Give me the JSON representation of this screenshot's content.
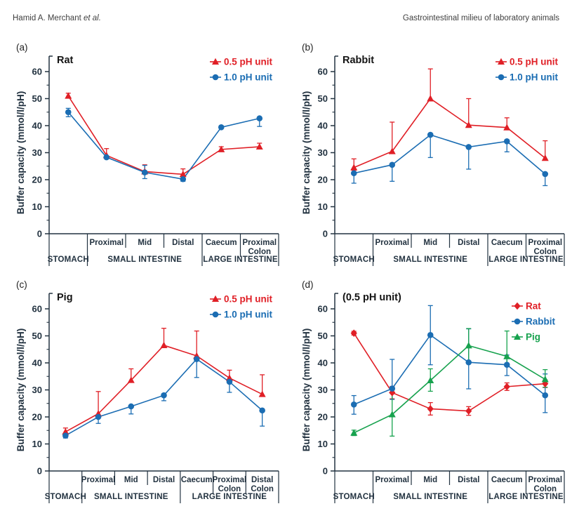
{
  "header": {
    "left_name": "Hamid A. Merchant ",
    "left_etal": "et al.",
    "right": "Gastrointestinal milieu of laboratory animals"
  },
  "colors": {
    "red": "#e01f26",
    "blue": "#1b6db3",
    "green": "#17a24e",
    "ink": "#223240"
  },
  "chart_data": [
    {
      "type": "line",
      "panel": "(a)",
      "title": "Rat",
      "ylabel": "Buffer capacity (mmol/l/pH)",
      "ylim": [
        0,
        66
      ],
      "yticks": [
        0,
        10,
        20,
        30,
        40,
        50,
        60
      ],
      "ytick_minor_step": 5,
      "grid": false,
      "legend_position": "top-right",
      "legend_pos": {
        "x": 287,
        "y": 36
      },
      "categories": [
        [],
        [
          "Proximal"
        ],
        [
          "Mid"
        ],
        [
          "Distal"
        ],
        [
          "Caecum"
        ],
        [
          "Proximal",
          "Colon"
        ]
      ],
      "groups": [
        {
          "label": "STOMACH",
          "span": [
            0,
            1
          ]
        },
        {
          "label": "SMALL INTESTINE",
          "span": [
            1,
            4
          ]
        },
        {
          "label": "LARGE INTESTINE",
          "span": [
            4,
            6
          ]
        }
      ],
      "series": [
        {
          "name": "0.5 pH unit",
          "color": "#e01f26",
          "marker": "triangle",
          "values": [
            51,
            29,
            23,
            22,
            31.2,
            32.2
          ],
          "err_up": [
            1,
            2.5,
            2.5,
            2,
            1,
            1.3
          ],
          "err_down": [
            0,
            0,
            0,
            0,
            0,
            0
          ]
        },
        {
          "name": "1.0 pH unit",
          "color": "#1b6db3",
          "marker": "circle",
          "values": [
            45,
            28.3,
            22.7,
            20.2,
            39.4,
            42.7
          ],
          "err_up": [
            1.4,
            0,
            2.6,
            0,
            0,
            0
          ],
          "err_down": [
            1.7,
            0,
            2.3,
            0.8,
            0,
            3
          ]
        }
      ]
    },
    {
      "type": "line",
      "panel": "(b)",
      "title": "Rabbit",
      "ylabel": "Buffer capacity (mmol/l/pH)",
      "ylim": [
        0,
        66
      ],
      "yticks": [
        0,
        10,
        20,
        30,
        40,
        50,
        60
      ],
      "ytick_minor_step": 5,
      "grid": false,
      "legend_position": "top-right",
      "legend_pos": {
        "x": 287,
        "y": 36
      },
      "categories": [
        [],
        [
          "Proximal"
        ],
        [
          "Mid"
        ],
        [
          "Distal"
        ],
        [
          "Caecum"
        ],
        [
          "Proximal",
          "Colon"
        ]
      ],
      "groups": [
        {
          "label": "STOMACH",
          "span": [
            0,
            1
          ]
        },
        {
          "label": "SMALL INTESTINE",
          "span": [
            1,
            4
          ]
        },
        {
          "label": "LARGE INTESTINE",
          "span": [
            4,
            6
          ]
        }
      ],
      "series": [
        {
          "name": "0.5 pH unit",
          "color": "#e01f26",
          "marker": "triangle",
          "values": [
            24.5,
            30.5,
            50,
            40.2,
            39.3,
            28
          ],
          "err_up": [
            3.2,
            10.8,
            11,
            9.8,
            3.6,
            6.4
          ],
          "err_down": [
            1,
            0,
            0,
            0,
            0,
            0
          ]
        },
        {
          "name": "1.0 pH unit",
          "color": "#1b6db3",
          "marker": "circle",
          "values": [
            22.4,
            25.5,
            36.6,
            32.1,
            34.2,
            22.1
          ],
          "err_up": [
            0,
            0,
            0,
            0,
            0.5,
            0
          ],
          "err_down": [
            3.7,
            6.1,
            8.4,
            8.2,
            3.9,
            4.3
          ]
        }
      ]
    },
    {
      "type": "line",
      "panel": "(c)",
      "title": "Pig",
      "ylabel": "Buffer capacity (mmol/l/pH)",
      "ylim": [
        0,
        66
      ],
      "yticks": [
        0,
        10,
        20,
        30,
        40,
        50,
        60
      ],
      "ytick_minor_step": 5,
      "grid": false,
      "legend_position": "top-right",
      "legend_pos": {
        "x": 287,
        "y": 36
      },
      "categories": [
        [],
        [
          "Proximal"
        ],
        [
          "Mid"
        ],
        [
          "Distal"
        ],
        [
          "Caecum"
        ],
        [
          "Proximal",
          "Colon"
        ],
        [
          "Distal",
          "Colon"
        ]
      ],
      "groups": [
        {
          "label": "STOMACH",
          "span": [
            0,
            1
          ]
        },
        {
          "label": "SMALL INTESTINE",
          "span": [
            1,
            4
          ]
        },
        {
          "label": "LARGE INTESTINE",
          "span": [
            4,
            7
          ]
        }
      ],
      "series": [
        {
          "name": "0.5 pH unit",
          "color": "#e01f26",
          "marker": "triangle",
          "values": [
            14.5,
            21.2,
            33.6,
            46.5,
            42.6,
            34.4,
            28.4
          ],
          "err_up": [
            1.4,
            8.2,
            4.2,
            6.3,
            9.2,
            2.9,
            7.2
          ],
          "err_down": [
            0,
            0,
            0,
            0,
            0,
            0,
            0
          ]
        },
        {
          "name": "1.0 pH unit",
          "color": "#1b6db3",
          "marker": "circle",
          "values": [
            13.1,
            20,
            23.9,
            28,
            41.4,
            33,
            22.4
          ],
          "err_up": [
            0,
            0,
            0,
            0,
            0,
            0.6,
            0
          ],
          "err_down": [
            0.9,
            2.4,
            2.8,
            2,
            6.8,
            3.9,
            5.8
          ]
        }
      ]
    },
    {
      "type": "line",
      "panel": "(d)",
      "title": "(0.5 pH unit)",
      "ylabel": "Buffer capacity (mmol/l/pH)",
      "ylim": [
        0,
        66
      ],
      "yticks": [
        0,
        10,
        20,
        30,
        40,
        50,
        60
      ],
      "ytick_minor_step": 5,
      "grid": false,
      "legend_position": "top-right",
      "legend_pos": {
        "x": 310,
        "y": 46
      },
      "categories": [
        [],
        [
          "Proximal"
        ],
        [
          "Mid"
        ],
        [
          "Distal"
        ],
        [
          "Caecum"
        ],
        [
          "Proximal",
          "Colon"
        ]
      ],
      "groups": [
        {
          "label": "STOMACH",
          "span": [
            0,
            1
          ]
        },
        {
          "label": "SMALL INTESTINE",
          "span": [
            1,
            4
          ]
        },
        {
          "label": "LARGE INTESTINE",
          "span": [
            4,
            6
          ]
        }
      ],
      "series": [
        {
          "name": "Rat",
          "color": "#e01f26",
          "marker": "diamond",
          "values": [
            51,
            29,
            23,
            22.2,
            31.2,
            32.3
          ],
          "err_up": [
            0.7,
            2.3,
            2.3,
            1.6,
            1.4,
            1.4
          ],
          "err_down": [
            0.7,
            2.3,
            2.3,
            1.6,
            1.4,
            1.4
          ]
        },
        {
          "name": "Rabbit",
          "color": "#1b6db3",
          "marker": "circle",
          "values": [
            24.6,
            30.5,
            50.3,
            40.2,
            39.3,
            28
          ],
          "err_up": [
            3.3,
            10.8,
            10.9,
            12.4,
            3.6,
            7.9
          ],
          "err_down": [
            3.6,
            4,
            11,
            9.8,
            4,
            6.4
          ]
        },
        {
          "name": "Pig",
          "color": "#17a24e",
          "marker": "triangle",
          "values": [
            14.1,
            20.9,
            33.5,
            46.4,
            42.4,
            33.9
          ],
          "err_up": [
            1,
            8.2,
            4.3,
            6.3,
            9.4,
            3.6
          ],
          "err_down": [
            1,
            8,
            4,
            6.3,
            2.8,
            2.9
          ]
        }
      ]
    }
  ]
}
